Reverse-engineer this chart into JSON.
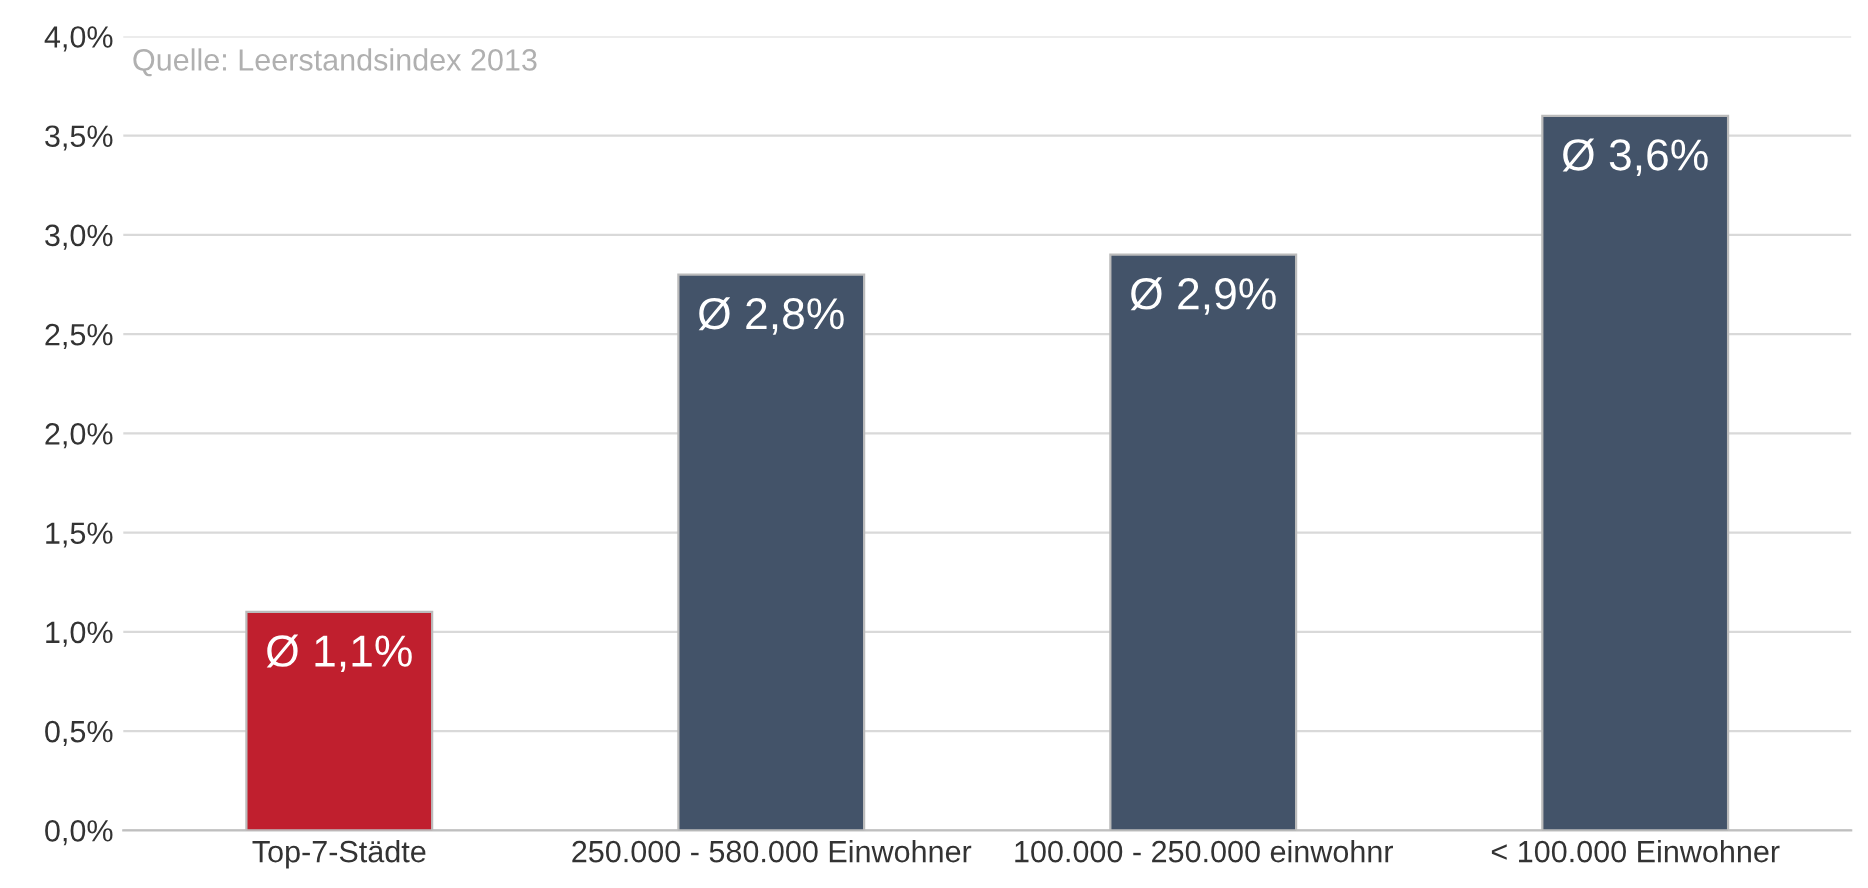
{
  "chart_data": {
    "type": "bar",
    "categories": [
      "Top-7-Städte",
      "250.000 - 580.000 Einwohner",
      "100.000 - 250.000 einwohnr",
      "< 100.000 Einwohner"
    ],
    "values": [
      1.1,
      2.8,
      2.9,
      3.6
    ],
    "colors": [
      "#c01f2e",
      "#435369",
      "#435369",
      "#435369"
    ],
    "value_labels": [
      "Ø 1,1%",
      "Ø 2,8%",
      "Ø 2,9%",
      "Ø 3,6%"
    ],
    "ylim": [
      0,
      4
    ],
    "yticks": [
      {
        "value": 0,
        "label": "0,0%"
      },
      {
        "value": 0.5,
        "label": "0,5%"
      },
      {
        "value": 1,
        "label": "1,0%"
      },
      {
        "value": 1.5,
        "label": "1,5%"
      },
      {
        "value": 2,
        "label": "2,0%"
      },
      {
        "value": 2.5,
        "label": "2,5%"
      },
      {
        "value": 3,
        "label": "3,0%"
      },
      {
        "value": 3.5,
        "label": "3,5%"
      },
      {
        "value": 4,
        "label": "4,0%"
      }
    ],
    "grid": "y",
    "annotations": [
      "Quelle: Leerstandsindex 2013"
    ]
  }
}
